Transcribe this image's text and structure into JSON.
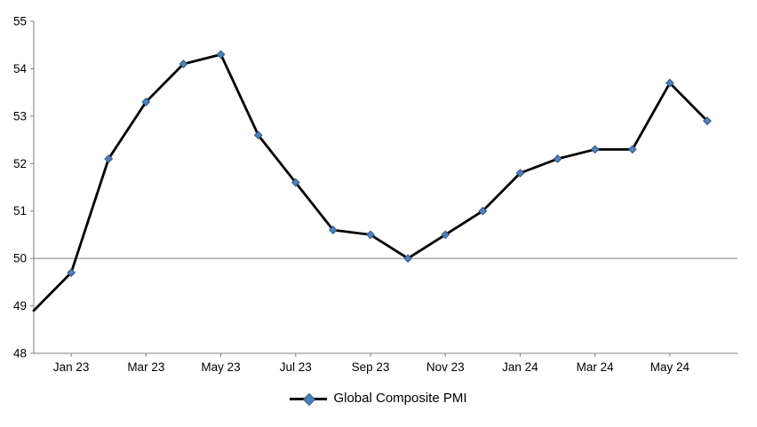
{
  "chart_data": {
    "type": "line",
    "title": "",
    "series": [
      {
        "name": "Global Composite PMI",
        "categories": [
          "Dec 22",
          "Jan 23",
          "Feb 23",
          "Mar 23",
          "Apr 23",
          "May 23",
          "Jun 23",
          "Jul 23",
          "Aug 23",
          "Sep 23",
          "Oct 23",
          "Nov 23",
          "Dec 23",
          "Jan 24",
          "Feb 24",
          "Mar 24",
          "Apr 24",
          "May 24",
          "Jun 24"
        ],
        "values": [
          48.9,
          49.7,
          52.1,
          53.3,
          54.1,
          54.3,
          52.6,
          51.6,
          50.6,
          50.5,
          50.0,
          50.5,
          51.0,
          51.8,
          52.1,
          52.3,
          52.3,
          53.7,
          52.9
        ]
      }
    ],
    "ylim": [
      48,
      55
    ],
    "y_tick_labels": [
      "48",
      "49",
      "50",
      "51",
      "52",
      "53",
      "54",
      "55"
    ],
    "x_tick_labels": [
      "Jan 23",
      "Mar 23",
      "May 23",
      "Jul 23",
      "Sep 23",
      "Nov 23",
      "Jan 24",
      "Mar 24",
      "May 24"
    ],
    "x_tick_indices": [
      1,
      3,
      5,
      7,
      9,
      11,
      13,
      15,
      17
    ],
    "reference_line": 50,
    "grid": false,
    "legend_position": "bottom-center",
    "first_point_has_marker": false
  },
  "legend": {
    "label": "Global Composite PMI"
  },
  "colors": {
    "line": "#000000",
    "marker_fill": "#4F81BD",
    "marker_stroke": "#2E5A88",
    "axis": "#808080",
    "text": "#000000",
    "background": "#FFFFFF"
  }
}
